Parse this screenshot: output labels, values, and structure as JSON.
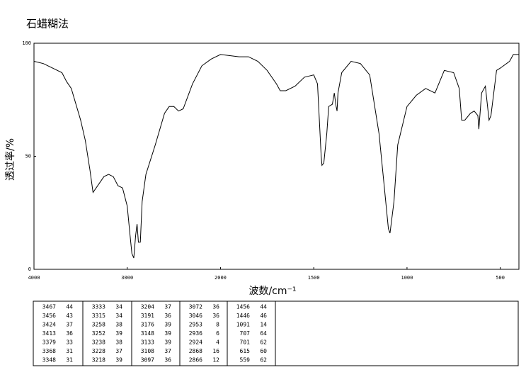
{
  "chart_data": {
    "type": "line",
    "title": "石蜡糊法",
    "x_label": "波数/cm⁻¹",
    "y_label": "透过率/%",
    "xlim": [
      4000,
      400
    ],
    "xscale": "split",
    "xbreak": 2000,
    "xticks": [
      4000,
      3000,
      2000,
      1500,
      1000,
      500
    ],
    "ylim": [
      0,
      100
    ],
    "yticks": [
      0,
      50,
      100
    ],
    "color": "#000000",
    "x": [
      4000,
      3900,
      3800,
      3700,
      3650,
      3600,
      3500,
      3450,
      3400,
      3367,
      3300,
      3250,
      3200,
      3150,
      3100,
      3050,
      3000,
      2970,
      2950,
      2930,
      2910,
      2895,
      2880,
      2860,
      2840,
      2800,
      2700,
      2600,
      2550,
      2500,
      2450,
      2400,
      2300,
      2200,
      2100,
      2000,
      1900,
      1850,
      1800,
      1750,
      1700,
      1680,
      1650,
      1600,
      1550,
      1500,
      1480,
      1460,
      1456,
      1446,
      1430,
      1420,
      1400,
      1390,
      1380,
      1375,
      1370,
      1350,
      1300,
      1250,
      1200,
      1150,
      1120,
      1100,
      1091,
      1070,
      1050,
      1000,
      950,
      900,
      850,
      800,
      750,
      720,
      707,
      690,
      660,
      640,
      620,
      615,
      600,
      580,
      560,
      550,
      520,
      500,
      450,
      430,
      400
    ],
    "values": [
      92,
      91,
      89,
      87,
      83,
      80,
      66,
      57,
      44,
      34,
      38,
      41,
      42,
      41,
      37,
      36,
      28,
      15,
      7,
      5,
      15,
      20,
      12,
      12,
      30,
      42,
      55,
      69,
      72,
      72,
      70,
      71,
      82,
      90,
      93,
      95,
      94,
      94,
      92,
      88,
      82,
      79,
      79,
      81,
      85,
      86,
      82,
      50,
      46,
      47,
      60,
      72,
      73,
      78,
      72,
      70,
      78,
      87,
      92,
      91,
      86,
      60,
      35,
      18,
      16,
      30,
      55,
      72,
      77,
      80,
      78,
      88,
      87,
      80,
      66,
      66,
      69,
      70,
      68,
      62,
      78,
      81,
      66,
      68,
      88,
      89,
      92,
      95,
      95
    ]
  },
  "table": {
    "columns": [
      [
        [
          "3467",
          "44"
        ],
        [
          "3456",
          "43"
        ],
        [
          "3424",
          "37"
        ],
        [
          "3413",
          "36"
        ],
        [
          "3379",
          "33"
        ],
        [
          "3368",
          "31"
        ],
        [
          "3348",
          "31"
        ]
      ],
      [
        [
          "3333",
          "34"
        ],
        [
          "3315",
          "34"
        ],
        [
          "3258",
          "38"
        ],
        [
          "3252",
          "39"
        ],
        [
          "3238",
          "38"
        ],
        [
          "3228",
          "37"
        ],
        [
          "3218",
          "39"
        ]
      ],
      [
        [
          "3204",
          "37"
        ],
        [
          "3191",
          "36"
        ],
        [
          "3176",
          "39"
        ],
        [
          "3148",
          "39"
        ],
        [
          "3133",
          "39"
        ],
        [
          "3108",
          "37"
        ],
        [
          "3097",
          "36"
        ]
      ],
      [
        [
          "3072",
          "36"
        ],
        [
          "3046",
          "36"
        ],
        [
          "2953",
          "8"
        ],
        [
          "2936",
          "6"
        ],
        [
          "2924",
          "4"
        ],
        [
          "2868",
          "16"
        ],
        [
          "2866",
          "12"
        ]
      ],
      [
        [
          "1456",
          "44"
        ],
        [
          "1446",
          "46"
        ],
        [
          "1091",
          "14"
        ],
        [
          "707",
          "64"
        ],
        [
          "701",
          "62"
        ],
        [
          "615",
          "60"
        ],
        [
          "559",
          "62"
        ]
      ]
    ]
  }
}
